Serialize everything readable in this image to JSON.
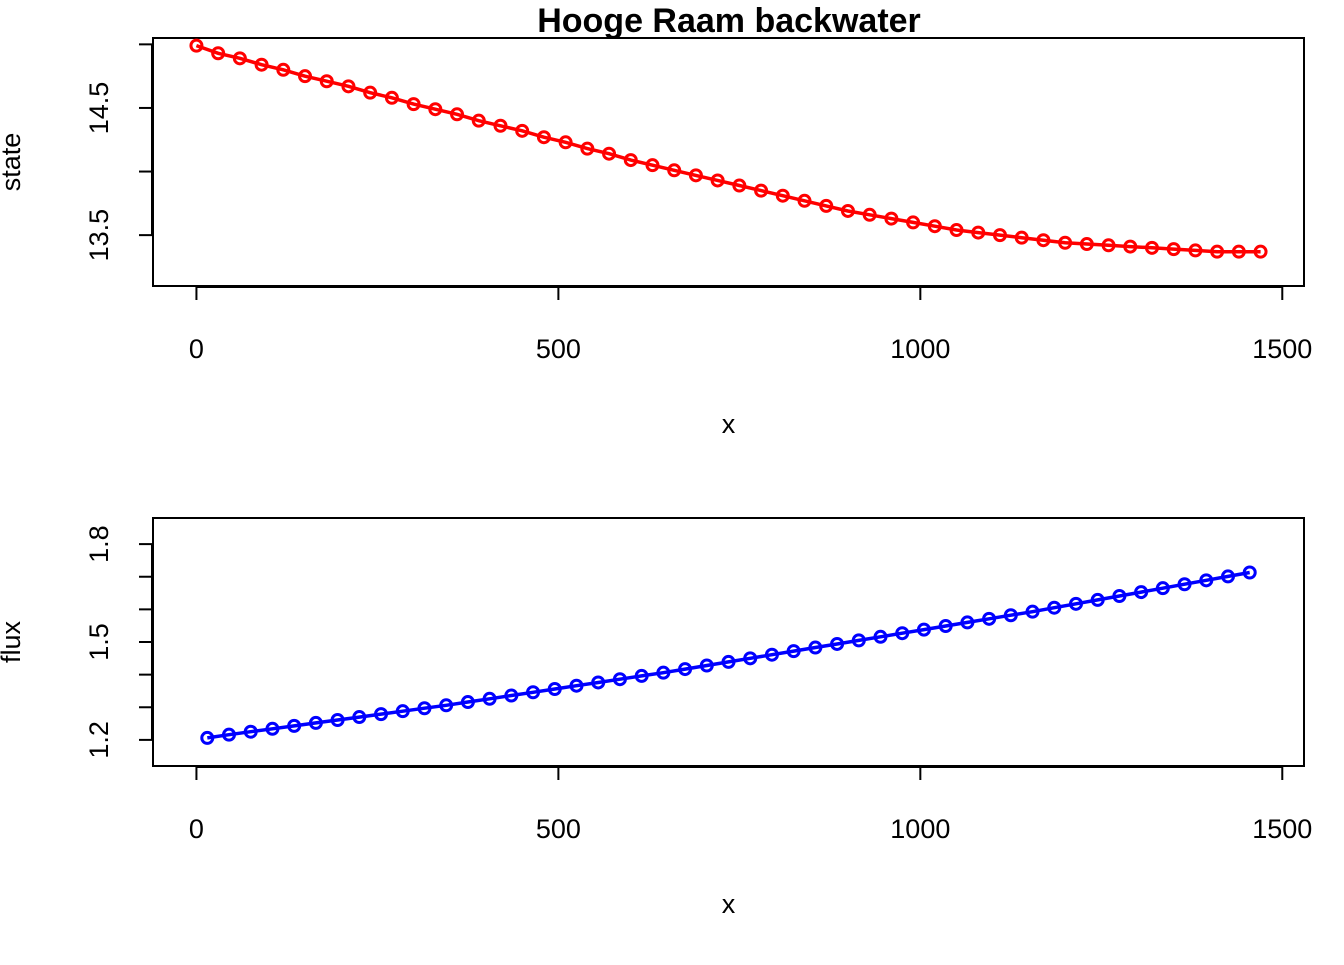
{
  "chart_data": [
    {
      "type": "line",
      "title": "Hooge Raam backwater",
      "xlabel": "x",
      "ylabel": "state",
      "xlim": [
        -60,
        1530
      ],
      "ylim": [
        13.1,
        15.05
      ],
      "x_ticks": [
        0,
        500,
        1000,
        1500
      ],
      "x_tick_labels": [
        "0",
        "500",
        "1000",
        "1500"
      ],
      "y_ticks": [
        13.5,
        14.0,
        14.5,
        15.0
      ],
      "y_tick_labels": [
        "13.5",
        "",
        "14.5",
        ""
      ],
      "grid": false,
      "color": "#ff0000",
      "x": [
        0,
        30,
        60,
        90,
        120,
        150,
        180,
        210,
        240,
        270,
        300,
        330,
        360,
        390,
        420,
        450,
        480,
        510,
        540,
        570,
        600,
        630,
        660,
        690,
        720,
        750,
        780,
        810,
        840,
        870,
        900,
        930,
        960,
        990,
        1020,
        1050,
        1080,
        1110,
        1140,
        1170,
        1200,
        1230,
        1260,
        1290,
        1320,
        1350,
        1380,
        1410,
        1440,
        1470
      ],
      "y": [
        14.99,
        14.93,
        14.89,
        14.84,
        14.8,
        14.75,
        14.71,
        14.67,
        14.62,
        14.58,
        14.53,
        14.49,
        14.45,
        14.4,
        14.36,
        14.32,
        14.27,
        14.23,
        14.18,
        14.14,
        14.09,
        14.05,
        14.01,
        13.97,
        13.93,
        13.89,
        13.85,
        13.81,
        13.77,
        13.73,
        13.69,
        13.66,
        13.63,
        13.6,
        13.57,
        13.54,
        13.52,
        13.5,
        13.48,
        13.46,
        13.44,
        13.43,
        13.42,
        13.41,
        13.4,
        13.39,
        13.38,
        13.37,
        13.37,
        13.37
      ]
    },
    {
      "type": "line",
      "title": "",
      "xlabel": "x",
      "ylabel": "flux",
      "xlim": [
        -60,
        1530
      ],
      "ylim": [
        1.12,
        1.88
      ],
      "x_ticks": [
        0,
        500,
        1000,
        1500
      ],
      "x_tick_labels": [
        "0",
        "500",
        "1000",
        "1500"
      ],
      "y_ticks": [
        1.2,
        1.3,
        1.4,
        1.5,
        1.6,
        1.7,
        1.8
      ],
      "y_tick_labels": [
        "1.2",
        "",
        "",
        "1.5",
        "",
        "",
        "1.8"
      ],
      "grid": false,
      "color": "#0000ff",
      "x": [
        15,
        45,
        75,
        105,
        135,
        165,
        195,
        225,
        255,
        285,
        315,
        345,
        375,
        405,
        435,
        465,
        495,
        525,
        555,
        585,
        615,
        645,
        675,
        705,
        735,
        765,
        795,
        825,
        855,
        885,
        915,
        945,
        975,
        1005,
        1035,
        1065,
        1095,
        1125,
        1155,
        1185,
        1215,
        1245,
        1275,
        1305,
        1335,
        1365,
        1395,
        1425,
        1455
      ],
      "y": [
        1.206,
        1.216,
        1.225,
        1.234,
        1.243,
        1.252,
        1.261,
        1.27,
        1.279,
        1.288,
        1.297,
        1.306,
        1.316,
        1.326,
        1.336,
        1.346,
        1.356,
        1.366,
        1.376,
        1.386,
        1.396,
        1.406,
        1.417,
        1.428,
        1.439,
        1.45,
        1.461,
        1.472,
        1.483,
        1.494,
        1.505,
        1.516,
        1.527,
        1.538,
        1.549,
        1.56,
        1.571,
        1.582,
        1.593,
        1.605,
        1.617,
        1.629,
        1.641,
        1.653,
        1.665,
        1.677,
        1.689,
        1.701,
        1.713
      ]
    }
  ]
}
